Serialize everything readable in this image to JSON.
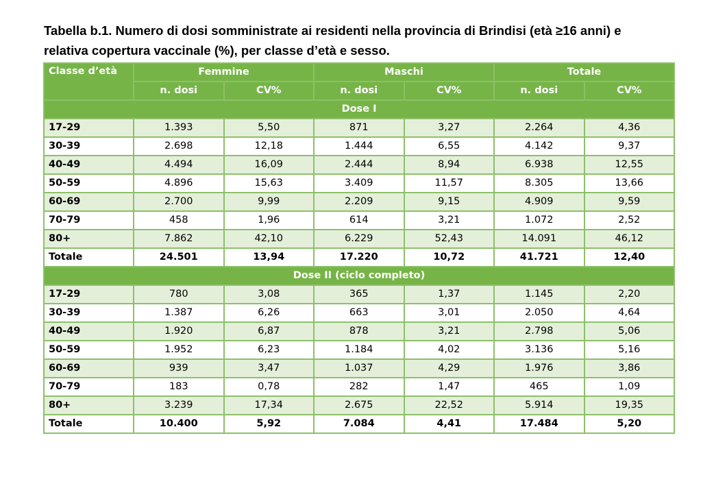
{
  "title": {
    "line1": "Tabella b.1. Numero di dosi somministrate ai residenti nella provincia di Brindisi (età ≥16 anni) e",
    "line2": "relativa copertura vaccinale (%), per classe d’età e sesso."
  },
  "table": {
    "corner_header": "Classe d’età",
    "groups": [
      "Femmine",
      "Maschi",
      "Totale"
    ],
    "subheaders": [
      "n. dosi",
      "CV%",
      "n. dosi",
      "CV%",
      "n. dosi",
      "CV%"
    ],
    "sections": [
      {
        "label": "Dose I",
        "rows": [
          {
            "age": "17-29",
            "cells": [
              "1.393",
              "5,50",
              "871",
              "3,27",
              "2.264",
              "4,36"
            ]
          },
          {
            "age": "30-39",
            "cells": [
              "2.698",
              "12,18",
              "1.444",
              "6,55",
              "4.142",
              "9,37"
            ]
          },
          {
            "age": "40-49",
            "cells": [
              "4.494",
              "16,09",
              "2.444",
              "8,94",
              "6.938",
              "12,55"
            ]
          },
          {
            "age": "50-59",
            "cells": [
              "4.896",
              "15,63",
              "3.409",
              "11,57",
              "8.305",
              "13,66"
            ]
          },
          {
            "age": "60-69",
            "cells": [
              "2.700",
              "9,99",
              "2.209",
              "9,15",
              "4.909",
              "9,59"
            ]
          },
          {
            "age": "70-79",
            "cells": [
              "458",
              "1,96",
              "614",
              "3,21",
              "1.072",
              "2,52"
            ]
          },
          {
            "age": "80+",
            "cells": [
              "7.862",
              "42,10",
              "6.229",
              "52,43",
              "14.091",
              "46,12"
            ]
          }
        ],
        "total": {
          "age": "Totale",
          "cells": [
            "24.501",
            "13,94",
            "17.220",
            "10,72",
            "41.721",
            "12,40"
          ]
        }
      },
      {
        "label": "Dose II (ciclo completo)",
        "rows": [
          {
            "age": "17-29",
            "cells": [
              "780",
              "3,08",
              "365",
              "1,37",
              "1.145",
              "2,20"
            ]
          },
          {
            "age": "30-39",
            "cells": [
              "1.387",
              "6,26",
              "663",
              "3,01",
              "2.050",
              "4,64"
            ]
          },
          {
            "age": "40-49",
            "cells": [
              "1.920",
              "6,87",
              "878",
              "3,21",
              "2.798",
              "5,06"
            ]
          },
          {
            "age": "50-59",
            "cells": [
              "1.952",
              "6,23",
              "1.184",
              "4,02",
              "3.136",
              "5,16"
            ]
          },
          {
            "age": "60-69",
            "cells": [
              "939",
              "3,47",
              "1.037",
              "4,29",
              "1.976",
              "3,86"
            ]
          },
          {
            "age": "70-79",
            "cells": [
              "183",
              "0,78",
              "282",
              "1,47",
              "465",
              "1,09"
            ]
          },
          {
            "age": "80+",
            "cells": [
              "3.239",
              "17,34",
              "2.675",
              "22,52",
              "5.914",
              "19,35"
            ]
          }
        ],
        "total": {
          "age": "Totale",
          "cells": [
            "10.400",
            "5,92",
            "7.084",
            "4,41",
            "17.484",
            "5,20"
          ]
        }
      }
    ]
  },
  "colors": {
    "header_green": "#76b447",
    "border_green": "#8cc068",
    "stripe_green": "#e4efda"
  }
}
